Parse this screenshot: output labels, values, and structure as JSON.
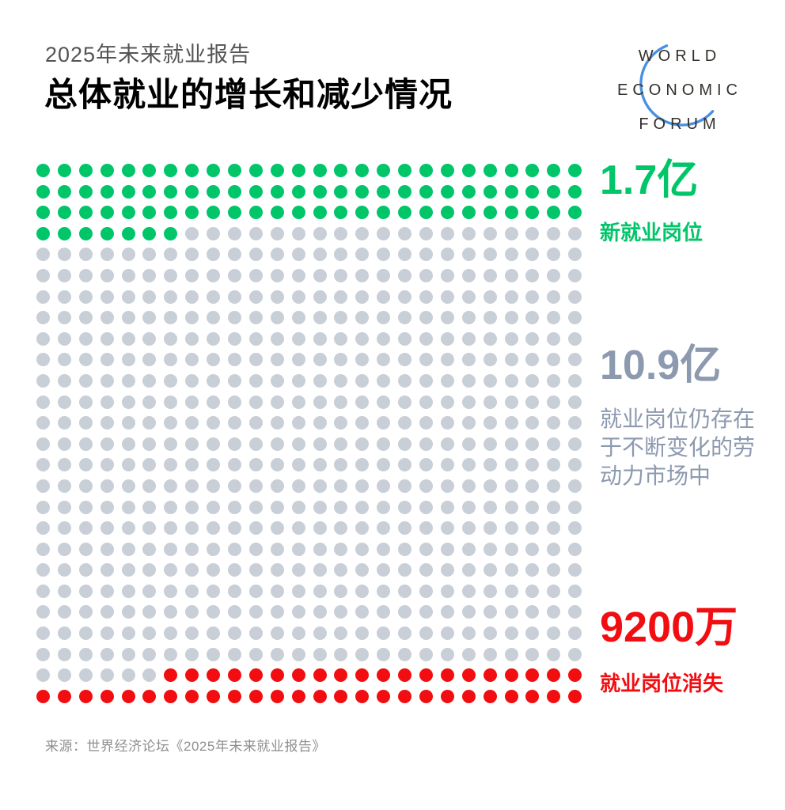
{
  "header": {
    "report_label": "2025年未来就业报告",
    "title": "总体就业的增长和减少情况"
  },
  "logo": {
    "lines": [
      "WORLD",
      "ECONOMIC",
      "FORUM"
    ]
  },
  "colors": {
    "green": "#00C669",
    "gray_dot": "#C8CFD7",
    "gray_text": "#8C99AF",
    "red": "#F20D11",
    "logo_blue": "#4A90E2",
    "title_black": "#000000",
    "subtitle_gray": "#545454",
    "source_gray": "#8F8F8F"
  },
  "legend": {
    "gained": {
      "value": "1.7亿",
      "label": "新就业岗位"
    },
    "existing": {
      "value": "10.9亿",
      "description": "就业岗位仍存在于不断变化的劳动力市场中"
    },
    "lost": {
      "value": "9200万",
      "label": "就业岗位消失"
    }
  },
  "footer": {
    "source": "来源：世界经济论坛《2025年未来就业报告》"
  },
  "chart_data": {
    "type": "waffle",
    "title": "总体就业的增长和减少情况",
    "grid": {
      "rows": 26,
      "cols": 26,
      "total_dots": 676
    },
    "series": [
      {
        "name": "新就业岗位",
        "value_label": "1.7亿",
        "value_millions": 170,
        "dots": 85,
        "color": "#00C669"
      },
      {
        "name": "就业岗位仍存在于不断变化的劳动力市场中",
        "value_label": "10.9亿",
        "value_millions": 1090,
        "dots": 545,
        "color": "#C8CFD7"
      },
      {
        "name": "就业岗位消失",
        "value_label": "9200万",
        "value_millions": 92,
        "dots": 46,
        "color": "#F20D11"
      }
    ],
    "legend_position": "right",
    "fill_order": "row-major-top-left"
  }
}
